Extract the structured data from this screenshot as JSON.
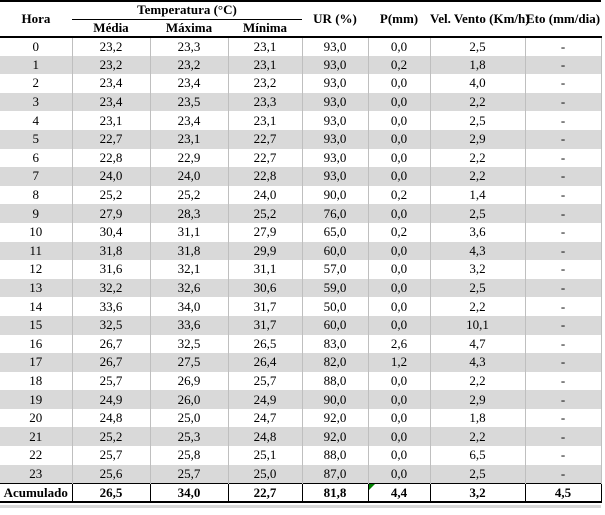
{
  "table": {
    "header": {
      "hora": "Hora",
      "temperatura_group": "Temperatura (°C)",
      "sub": [
        "Média",
        "Máxima",
        "Mínima"
      ],
      "ur": "UR (%)",
      "p": "P(mm)",
      "vel_vento": "Vel. Vento (Km/h)",
      "eto": "Eto (mm/dia)"
    },
    "column_keys": [
      "hora",
      "media",
      "maxima",
      "minima",
      "ur",
      "p",
      "vel-vento",
      "eto"
    ],
    "rows": [
      [
        "0",
        "23,2",
        "23,3",
        "23,1",
        "93,0",
        "0,0",
        "2,5",
        "-"
      ],
      [
        "1",
        "23,2",
        "23,2",
        "23,1",
        "93,0",
        "0,2",
        "1,8",
        "-"
      ],
      [
        "2",
        "23,4",
        "23,4",
        "23,2",
        "93,0",
        "0,0",
        "4,0",
        "-"
      ],
      [
        "3",
        "23,4",
        "23,5",
        "23,3",
        "93,0",
        "0,0",
        "2,2",
        "-"
      ],
      [
        "4",
        "23,1",
        "23,4",
        "23,1",
        "93,0",
        "0,0",
        "2,5",
        "-"
      ],
      [
        "5",
        "22,7",
        "23,1",
        "22,7",
        "93,0",
        "0,0",
        "2,9",
        "-"
      ],
      [
        "6",
        "22,8",
        "22,9",
        "22,7",
        "93,0",
        "0,0",
        "2,2",
        "-"
      ],
      [
        "7",
        "24,0",
        "24,0",
        "22,8",
        "93,0",
        "0,0",
        "2,2",
        "-"
      ],
      [
        "8",
        "25,2",
        "25,2",
        "24,0",
        "90,0",
        "0,2",
        "1,4",
        "-"
      ],
      [
        "9",
        "27,9",
        "28,3",
        "25,2",
        "76,0",
        "0,0",
        "2,5",
        "-"
      ],
      [
        "10",
        "30,4",
        "31,1",
        "27,9",
        "65,0",
        "0,2",
        "3,6",
        "-"
      ],
      [
        "11",
        "31,8",
        "31,8",
        "29,9",
        "60,0",
        "0,0",
        "4,3",
        "-"
      ],
      [
        "12",
        "31,6",
        "32,1",
        "31,1",
        "57,0",
        "0,0",
        "3,2",
        "-"
      ],
      [
        "13",
        "32,2",
        "32,6",
        "30,6",
        "59,0",
        "0,0",
        "2,5",
        "-"
      ],
      [
        "14",
        "33,6",
        "34,0",
        "31,7",
        "50,0",
        "0,0",
        "2,2",
        "-"
      ],
      [
        "15",
        "32,5",
        "33,6",
        "31,7",
        "60,0",
        "0,0",
        "10,1",
        "-"
      ],
      [
        "16",
        "26,7",
        "32,5",
        "26,5",
        "83,0",
        "2,6",
        "4,7",
        "-"
      ],
      [
        "17",
        "26,7",
        "27,5",
        "26,4",
        "82,0",
        "1,2",
        "4,3",
        "-"
      ],
      [
        "18",
        "25,7",
        "26,9",
        "25,7",
        "88,0",
        "0,0",
        "2,2",
        "-"
      ],
      [
        "19",
        "24,9",
        "26,0",
        "24,9",
        "90,0",
        "0,0",
        "2,9",
        "-"
      ],
      [
        "20",
        "24,8",
        "25,0",
        "24,7",
        "92,0",
        "0,0",
        "1,8",
        "-"
      ],
      [
        "21",
        "25,2",
        "25,3",
        "24,8",
        "92,0",
        "0,0",
        "2,2",
        "-"
      ],
      [
        "22",
        "25,7",
        "25,8",
        "25,1",
        "88,0",
        "0,0",
        "6,5",
        "-"
      ],
      [
        "23",
        "25,6",
        "25,7",
        "25,0",
        "87,0",
        "0,0",
        "2,5",
        "-"
      ]
    ],
    "footer": [
      "Acumulado",
      "26,5",
      "34,0",
      "22,7",
      "81,8",
      "4,4",
      "3,2",
      "4,5"
    ]
  },
  "colors": {
    "stripe": "#d9d9d9",
    "grid": "#bfbfbf",
    "rule": "#000000",
    "flag-green": "#008000"
  }
}
